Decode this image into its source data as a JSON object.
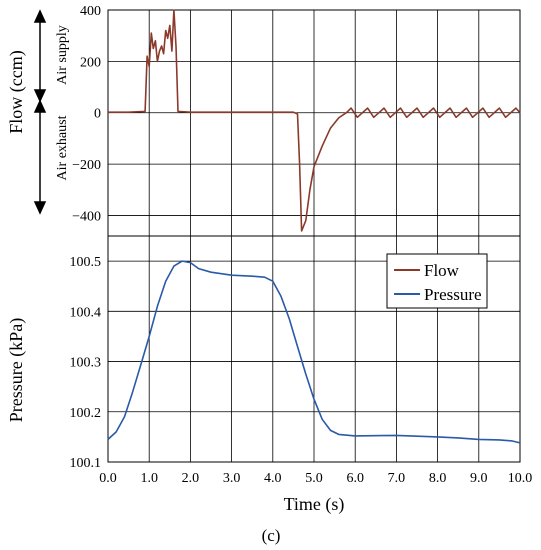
{
  "chart_data": [
    {
      "type": "line",
      "ylabel": "Flow (ccm)",
      "xlim": [
        0,
        10
      ],
      "ylim": [
        -480,
        400
      ],
      "yticks": [
        "400",
        "200",
        "0",
        "−200",
        "−400"
      ],
      "annotations": [
        "Air supply",
        "Air exhaust"
      ],
      "series": [
        {
          "name": "Flow",
          "color": "#8b3a2a",
          "x": [
            0.0,
            0.5,
            0.9,
            0.95,
            1.0,
            1.05,
            1.1,
            1.15,
            1.2,
            1.25,
            1.3,
            1.35,
            1.4,
            1.45,
            1.5,
            1.55,
            1.6,
            1.65,
            1.7,
            2.0,
            3.0,
            4.0,
            4.5,
            4.6,
            4.65,
            4.7,
            4.8,
            4.9,
            5.0,
            5.2,
            5.4,
            5.6,
            5.8,
            5.9,
            6.05,
            6.3,
            6.45,
            6.7,
            6.85,
            7.1,
            7.25,
            7.5,
            7.65,
            7.9,
            8.05,
            8.3,
            8.45,
            8.7,
            8.85,
            9.1,
            9.25,
            9.5,
            9.65,
            9.9,
            10.0
          ],
          "y": [
            2,
            2,
            5,
            220,
            180,
            310,
            250,
            280,
            200,
            240,
            260,
            230,
            320,
            290,
            340,
            240,
            400,
            260,
            5,
            2,
            2,
            2,
            2,
            -5,
            -200,
            -460,
            -420,
            -300,
            -210,
            -130,
            -60,
            -20,
            2,
            18,
            -18,
            18,
            -18,
            18,
            -18,
            18,
            -18,
            18,
            -18,
            18,
            -18,
            18,
            -18,
            18,
            -18,
            18,
            -18,
            18,
            -18,
            18,
            0
          ]
        }
      ]
    },
    {
      "type": "line",
      "xlabel": "Time (s)",
      "ylabel": "Pressure (kPa)",
      "xlim": [
        0,
        10
      ],
      "ylim": [
        100.1,
        100.55
      ],
      "xticks": [
        "0.0",
        "1.0",
        "2.0",
        "3.0",
        "4.0",
        "5.0",
        "6.0",
        "7.0",
        "8.0",
        "9.0",
        "10.0"
      ],
      "yticks": [
        "100.5",
        "100.4",
        "100.3",
        "100.2",
        "100.1"
      ],
      "series": [
        {
          "name": "Pressure",
          "color": "#2a5aa8",
          "x": [
            0.0,
            0.2,
            0.4,
            0.6,
            0.8,
            1.0,
            1.2,
            1.4,
            1.6,
            1.8,
            2.0,
            2.2,
            2.5,
            3.0,
            3.5,
            3.8,
            4.0,
            4.2,
            4.4,
            4.6,
            4.8,
            5.0,
            5.2,
            5.4,
            5.6,
            6.0,
            7.0,
            8.0,
            8.5,
            9.0,
            9.5,
            9.8,
            10.0
          ],
          "y": [
            100.145,
            100.16,
            100.19,
            100.24,
            100.295,
            100.35,
            100.41,
            100.46,
            100.49,
            100.5,
            100.497,
            100.485,
            100.478,
            100.472,
            100.47,
            100.468,
            100.46,
            100.43,
            100.385,
            100.33,
            100.275,
            100.225,
            100.185,
            100.163,
            100.155,
            100.152,
            100.153,
            100.15,
            100.148,
            100.145,
            100.144,
            100.142,
            100.138
          ]
        }
      ]
    }
  ],
  "legend": {
    "items": [
      "Flow",
      "Pressure"
    ],
    "position": "upper-right-of-bottom-panel"
  },
  "caption": "(c)"
}
